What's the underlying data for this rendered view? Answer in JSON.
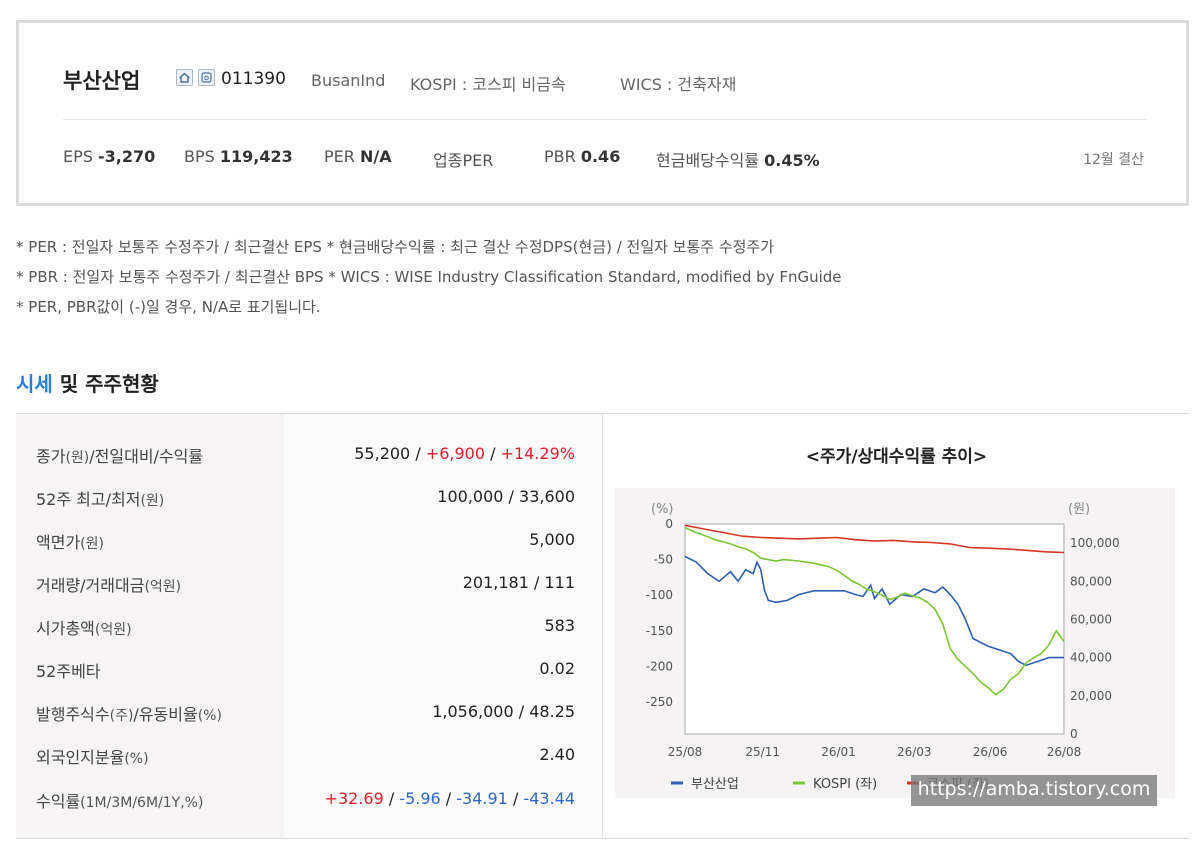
{
  "company": {
    "name": "부산산업",
    "code": "011390",
    "eng_name": "BusanInd",
    "market": "KOSPI : 코스피 비금속",
    "wics": "WICS : 건축자재"
  },
  "stats": {
    "eps_label": "EPS",
    "eps_value": "-3,270",
    "bps_label": "BPS",
    "bps_value": "119,423",
    "per_label": "PER",
    "per_value": "N/A",
    "ind_per_label": "업종PER",
    "pbr_label": "PBR",
    "pbr_value": "0.46",
    "div_label": "현금배당수익률",
    "div_value": "0.45%",
    "settlement": "12월 결산"
  },
  "notes": [
    "* PER : 전일자 보통주 수정주가 / 최근결산 EPS * 현금배당수익률 : 최근 결산 수정DPS(현금) / 전일자 보통주 수정주가",
    "* PBR : 전일자 보통주 수정주가 / 최근결산 BPS * WICS : WISE Industry Classification Standard, modified by FnGuide",
    "* PER, PBR값이 (-)일 경우, N/A로 표기됩니다."
  ],
  "section": {
    "title_highlight": "시세",
    "title_rest": " 및 주주현황"
  },
  "table": {
    "rows": [
      {
        "label": "종가",
        "unit": "(원)",
        "label2": "/전일대비/수익률",
        "v1": "55,200",
        "v2": "+6,900",
        "v3": "+14.29%"
      },
      {
        "label": "52주 최고/최저",
        "unit": "(원)",
        "value": "100,000 / 33,600"
      },
      {
        "label": "액면가",
        "unit": "(원)",
        "value": "5,000"
      },
      {
        "label": "거래량/거래대금",
        "unit": "(억원)",
        "value": "201,181 / 111"
      },
      {
        "label": "시가총액",
        "unit": "(억원)",
        "value": "583"
      },
      {
        "label": "52주베타",
        "unit": "",
        "value": "0.02"
      },
      {
        "label": "발행주식수",
        "unit": "(주)",
        "label2": "/유동비율",
        "unit2": "(%)",
        "value": "1,056,000 / 48.25"
      },
      {
        "label": "외국인지분율",
        "unit": "(%)",
        "value": "2.40"
      },
      {
        "label": "수익률",
        "unit": "(1M/3M/6M/1Y,%)",
        "r1": "+32.69",
        "r2": "-5.96",
        "r3": "-34.91",
        "r4": "-43.44"
      }
    ]
  },
  "chart_data": {
    "type": "line",
    "title": "<주가/상대수익률 추이>",
    "left_unit": "(%)",
    "right_unit": "(원)",
    "x_ticks": [
      "25/08",
      "25/11",
      "26/01",
      "26/03",
      "26/06",
      "26/08"
    ],
    "y_left_ticks": [
      0,
      -50,
      -100,
      -150,
      -200,
      -250
    ],
    "y_left_range": [
      -295,
      0
    ],
    "y_right_ticks": [
      "100,000",
      "80,000",
      "60,000",
      "40,000",
      "20,000",
      "0"
    ],
    "y_right_range": [
      0,
      110000
    ],
    "x_range": [
      0,
      100
    ],
    "series": [
      {
        "name": "부산산업",
        "color": "#2e5fb3",
        "axis": "right",
        "points": [
          [
            0,
            93000
          ],
          [
            3,
            90000
          ],
          [
            6,
            84000
          ],
          [
            9,
            80000
          ],
          [
            12,
            85000
          ],
          [
            14,
            80000
          ],
          [
            16,
            86000
          ],
          [
            18,
            84000
          ],
          [
            19,
            90000
          ],
          [
            20,
            86000
          ],
          [
            21,
            75000
          ],
          [
            22,
            70000
          ],
          [
            24,
            69000
          ],
          [
            27,
            70000
          ],
          [
            30,
            73000
          ],
          [
            34,
            75000
          ],
          [
            38,
            75000
          ],
          [
            42,
            75000
          ],
          [
            45,
            73000
          ],
          [
            47,
            72000
          ],
          [
            49,
            78000
          ],
          [
            50,
            71000
          ],
          [
            52,
            76000
          ],
          [
            54,
            68000
          ],
          [
            57,
            73000
          ],
          [
            60,
            72000
          ],
          [
            63,
            76000
          ],
          [
            66,
            74000
          ],
          [
            68,
            77000
          ],
          [
            70,
            73000
          ],
          [
            72,
            68000
          ],
          [
            74,
            60000
          ],
          [
            76,
            50000
          ],
          [
            78,
            48000
          ],
          [
            80,
            46000
          ],
          [
            83,
            44000
          ],
          [
            86,
            42000
          ],
          [
            88,
            38000
          ],
          [
            90,
            36000
          ],
          [
            93,
            38000
          ],
          [
            96,
            40000
          ],
          [
            100,
            40000
          ]
        ]
      },
      {
        "name": "KOSPI (좌)",
        "color": "#7cc734",
        "axis": "left",
        "points": [
          [
            0,
            -5
          ],
          [
            2,
            -10
          ],
          [
            4,
            -14
          ],
          [
            6,
            -18
          ],
          [
            8,
            -22
          ],
          [
            10,
            -25
          ],
          [
            12,
            -28
          ],
          [
            14,
            -32
          ],
          [
            16,
            -35
          ],
          [
            18,
            -40
          ],
          [
            20,
            -48
          ],
          [
            22,
            -50
          ],
          [
            24,
            -52
          ],
          [
            26,
            -50
          ],
          [
            30,
            -52
          ],
          [
            34,
            -55
          ],
          [
            38,
            -60
          ],
          [
            40,
            -65
          ],
          [
            42,
            -72
          ],
          [
            44,
            -80
          ],
          [
            46,
            -85
          ],
          [
            48,
            -92
          ],
          [
            50,
            -95
          ],
          [
            52,
            -100
          ],
          [
            54,
            -106
          ],
          [
            56,
            -103
          ],
          [
            58,
            -97
          ],
          [
            60,
            -101
          ],
          [
            62,
            -104
          ],
          [
            64,
            -110
          ],
          [
            66,
            -120
          ],
          [
            68,
            -140
          ],
          [
            70,
            -175
          ],
          [
            72,
            -190
          ],
          [
            74,
            -200
          ],
          [
            76,
            -210
          ],
          [
            78,
            -222
          ],
          [
            80,
            -230
          ],
          [
            82,
            -240
          ],
          [
            84,
            -232
          ],
          [
            86,
            -218
          ],
          [
            88,
            -210
          ],
          [
            90,
            -195
          ],
          [
            92,
            -188
          ],
          [
            94,
            -182
          ],
          [
            96,
            -170
          ],
          [
            98,
            -150
          ],
          [
            100,
            -165
          ]
        ]
      },
      {
        "name": "코스피 (좌)",
        "color": "#d9341f",
        "axis": "left",
        "points": [
          [
            0,
            -2
          ],
          [
            5,
            -7
          ],
          [
            10,
            -12
          ],
          [
            15,
            -17
          ],
          [
            20,
            -19
          ],
          [
            25,
            -20
          ],
          [
            30,
            -21
          ],
          [
            35,
            -20
          ],
          [
            40,
            -19
          ],
          [
            45,
            -22
          ],
          [
            50,
            -24
          ],
          [
            55,
            -23
          ],
          [
            60,
            -25
          ],
          [
            65,
            -26
          ],
          [
            70,
            -28
          ],
          [
            75,
            -33
          ],
          [
            80,
            -34
          ],
          [
            85,
            -35
          ],
          [
            90,
            -37
          ],
          [
            95,
            -39
          ],
          [
            100,
            -40
          ]
        ]
      }
    ]
  },
  "watermark": "https://amba.tistory.com"
}
